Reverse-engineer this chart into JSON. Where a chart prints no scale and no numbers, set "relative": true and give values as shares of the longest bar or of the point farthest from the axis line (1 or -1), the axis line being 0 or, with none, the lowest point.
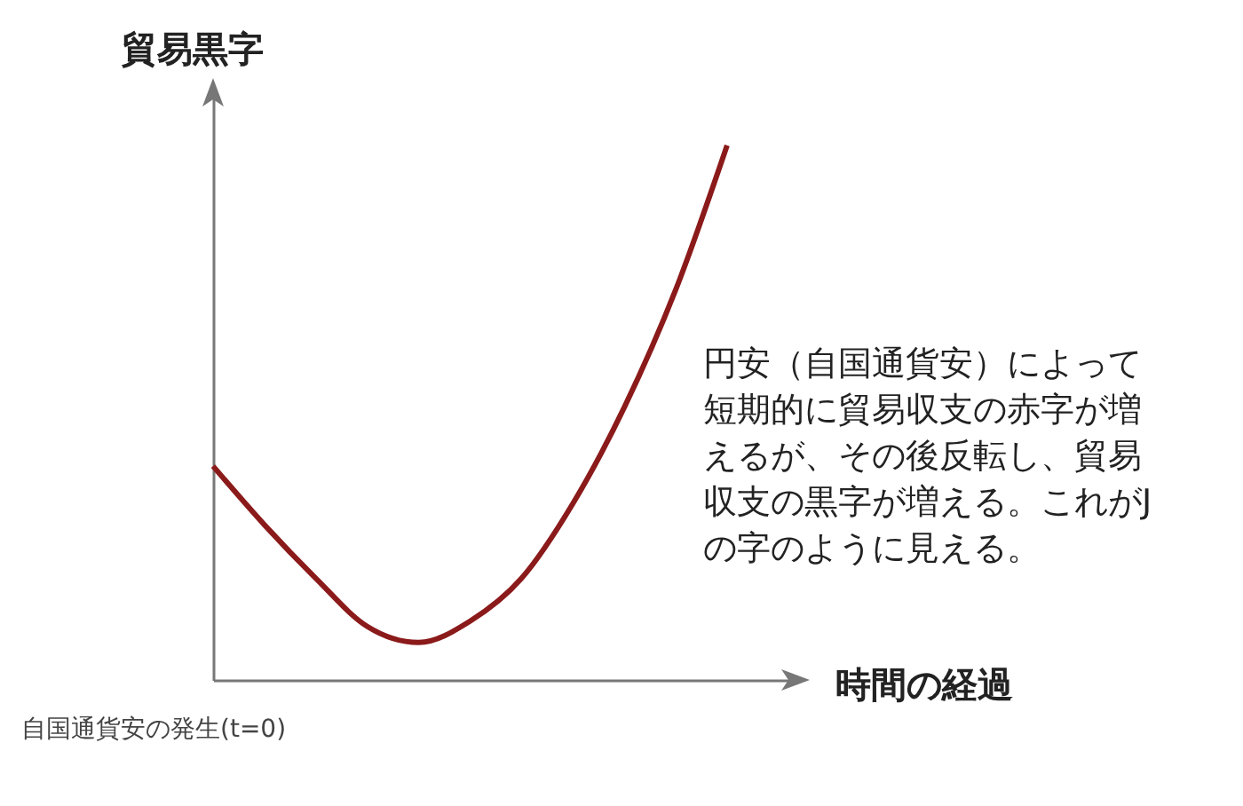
{
  "chart_data": {
    "type": "line",
    "relative": true,
    "ylabel": "貿易黒字",
    "xlabel": "時間の経過",
    "categories": [
      null,
      null,
      null,
      null,
      null,
      null,
      null,
      null,
      null,
      null,
      null
    ],
    "series": [
      {
        "color": "#8b1a1a",
        "values": [
          0.4,
          0.29,
          0.19,
          0.1,
          0.07,
          0.11,
          0.19,
          0.33,
          0.51,
          0.73,
          1
        ]
      }
    ],
    "annotations": [
      "自国通貨安の発生(t=0)",
      "円安（自国通貨安）によって短期的に貿易収支の赤字が増えるが、その後反転し、貿易収支の黒字が増える。これがJの字のように見える。"
    ],
    "grid": false,
    "legend": false,
    "marker": "none",
    "line_style": "solid"
  }
}
